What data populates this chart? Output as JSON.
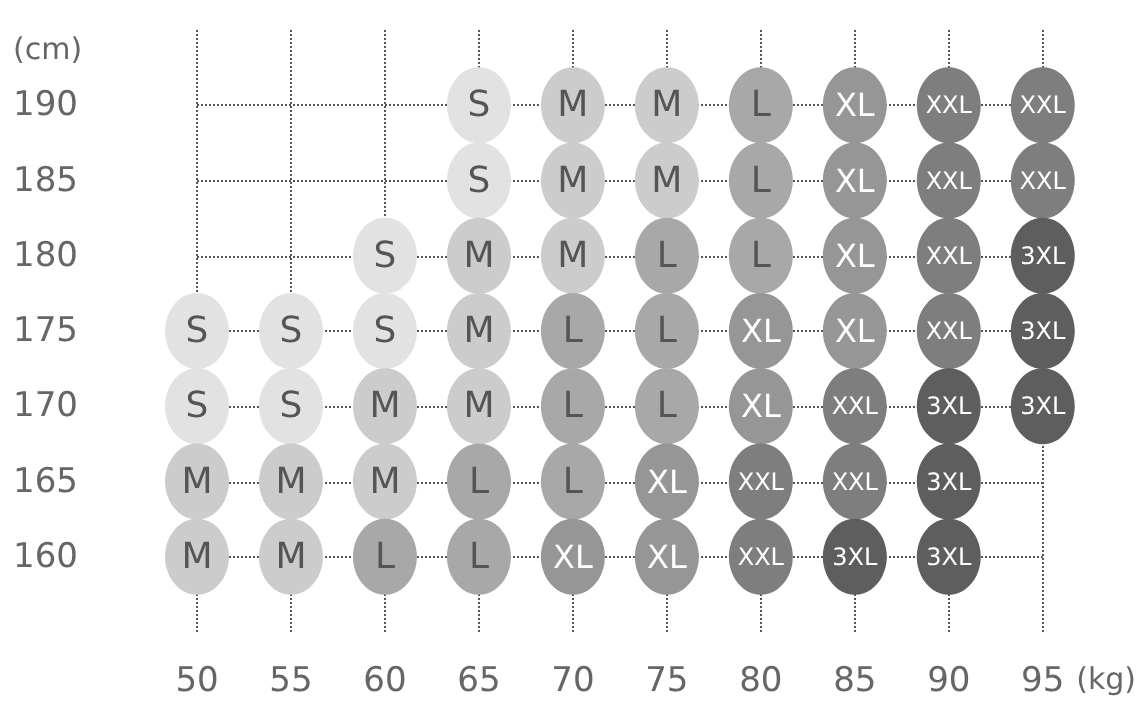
{
  "chart_data": {
    "type": "scatter",
    "xlabel": "(kg)",
    "ylabel": "(cm)",
    "grid": true,
    "marker": "circle",
    "categories": [
      "50",
      "55",
      "60",
      "65",
      "70",
      "75",
      "80",
      "85",
      "90",
      "95"
    ],
    "ylim": [
      155,
      195
    ],
    "yticks": [
      160,
      165,
      170,
      175,
      180,
      185,
      190
    ],
    "series": [
      {
        "name": "S",
        "color": "#e2e2e2",
        "x": [
          "65",
          "65",
          "60",
          "50",
          "55",
          "60",
          "50",
          "55"
        ],
        "values": [
          190,
          185,
          180,
          175,
          175,
          175,
          170,
          170
        ]
      },
      {
        "name": "M",
        "color": "#cccccc",
        "x": [
          "70",
          "75",
          "70",
          "75",
          "65",
          "70",
          "65",
          "60",
          "65",
          "50",
          "55",
          "60",
          "50",
          "55"
        ],
        "values": [
          190,
          190,
          185,
          185,
          180,
          180,
          175,
          170,
          170,
          165,
          165,
          165,
          160,
          160
        ]
      },
      {
        "name": "L",
        "color": "#a8a8a8",
        "x": [
          "80",
          "80",
          "75",
          "80",
          "70",
          "75",
          "70",
          "75",
          "65",
          "70",
          "60",
          "65"
        ],
        "values": [
          190,
          185,
          180,
          180,
          175,
          175,
          170,
          170,
          165,
          165,
          160,
          160
        ]
      },
      {
        "name": "XL",
        "color": "#969696",
        "x": [
          "85",
          "85",
          "85",
          "80",
          "85",
          "80",
          "75",
          "70",
          "75"
        ],
        "values": [
          190,
          185,
          180,
          175,
          175,
          170,
          165,
          160,
          160
        ]
      },
      {
        "name": "XXL",
        "color": "#7e7e7e",
        "x": [
          "90",
          "95",
          "90",
          "95",
          "90",
          "90",
          "85",
          "80",
          "85",
          "80"
        ],
        "values": [
          190,
          190,
          185,
          185,
          180,
          175,
          170,
          165,
          165,
          160
        ]
      },
      {
        "name": "3XL",
        "color": "#5e5e5e",
        "x": [
          "95",
          "95",
          "90",
          "95",
          "90",
          "85",
          "90"
        ],
        "values": [
          180,
          175,
          170,
          170,
          165,
          160,
          160
        ]
      }
    ]
  }
}
